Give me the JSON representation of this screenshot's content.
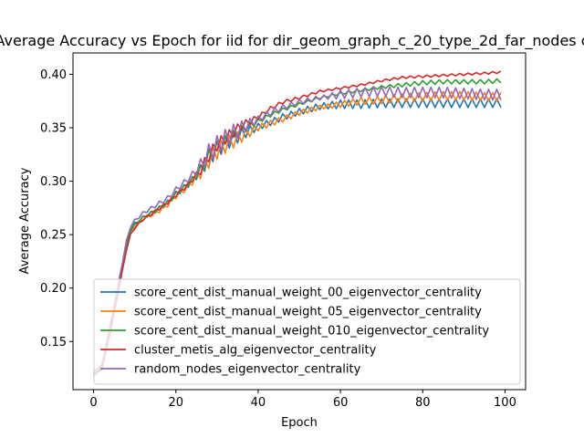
{
  "chart_data": {
    "type": "line",
    "title": "Average Accuracy vs Epoch for iid for dir_geom_graph_c_20_type_2d_far_nodes c",
    "xlabel": "Epoch",
    "ylabel": "Average Accuracy",
    "xlim": [
      -5,
      105
    ],
    "ylim": [
      0.105,
      0.42
    ],
    "xticks": [
      0,
      20,
      40,
      60,
      80,
      100
    ],
    "yticks": [
      0.15,
      0.2,
      0.25,
      0.3,
      0.35,
      0.4
    ],
    "grid": false,
    "legend_position": "lower-right",
    "series": [
      {
        "name": "score_cent_dist_manual_weight_00_eigenvector_centrality",
        "color": "#1f77b4",
        "anchors": [
          [
            0,
            0.12
          ],
          [
            2,
            0.125
          ],
          [
            4,
            0.16
          ],
          [
            6,
            0.2
          ],
          [
            8,
            0.24
          ],
          [
            9,
            0.255
          ],
          [
            10,
            0.26
          ],
          [
            12,
            0.266
          ],
          [
            15,
            0.272
          ],
          [
            18,
            0.28
          ],
          [
            20,
            0.288
          ],
          [
            23,
            0.297
          ],
          [
            26,
            0.31
          ],
          [
            28,
            0.322
          ],
          [
            30,
            0.33
          ],
          [
            33,
            0.338
          ],
          [
            36,
            0.344
          ],
          [
            40,
            0.351
          ],
          [
            43,
            0.355
          ],
          [
            46,
            0.36
          ],
          [
            50,
            0.365
          ],
          [
            55,
            0.37
          ],
          [
            60,
            0.372
          ],
          [
            65,
            0.372
          ],
          [
            70,
            0.373
          ],
          [
            75,
            0.373
          ],
          [
            80,
            0.373
          ],
          [
            85,
            0.373
          ],
          [
            90,
            0.373
          ],
          [
            95,
            0.373
          ],
          [
            99,
            0.373
          ]
        ],
        "zigzag": [
          [
            0,
            0
          ],
          [
            24,
            0.003
          ],
          [
            28,
            0.008
          ],
          [
            34,
            0.007
          ],
          [
            40,
            0.003
          ],
          [
            56,
            0.003
          ],
          [
            60,
            0.004
          ],
          [
            80,
            0.004
          ],
          [
            99,
            0.004
          ]
        ]
      },
      {
        "name": "score_cent_dist_manual_weight_05_eigenvector_centrality",
        "color": "#ff7f0e",
        "anchors": [
          [
            0,
            0.118
          ],
          [
            2,
            0.125
          ],
          [
            4,
            0.16
          ],
          [
            6,
            0.198
          ],
          [
            8,
            0.238
          ],
          [
            9,
            0.252
          ],
          [
            10,
            0.258
          ],
          [
            12,
            0.265
          ],
          [
            15,
            0.27
          ],
          [
            18,
            0.278
          ],
          [
            20,
            0.286
          ],
          [
            23,
            0.295
          ],
          [
            26,
            0.308
          ],
          [
            28,
            0.32
          ],
          [
            30,
            0.328
          ],
          [
            33,
            0.336
          ],
          [
            36,
            0.342
          ],
          [
            40,
            0.35
          ],
          [
            43,
            0.354
          ],
          [
            46,
            0.358
          ],
          [
            50,
            0.364
          ],
          [
            55,
            0.369
          ],
          [
            60,
            0.372
          ],
          [
            65,
            0.375
          ],
          [
            70,
            0.376
          ],
          [
            75,
            0.378
          ],
          [
            80,
            0.379
          ],
          [
            85,
            0.38
          ],
          [
            90,
            0.38
          ],
          [
            95,
            0.379
          ],
          [
            99,
            0.379
          ]
        ],
        "zigzag": [
          [
            0,
            0
          ],
          [
            24,
            0.003
          ],
          [
            28,
            0.008
          ],
          [
            34,
            0.007
          ],
          [
            40,
            0.003
          ],
          [
            56,
            0.002
          ],
          [
            60,
            0.003
          ],
          [
            80,
            0.004
          ],
          [
            99,
            0.004
          ]
        ]
      },
      {
        "name": "score_cent_dist_manual_weight_010_eigenvector_centrality",
        "color": "#2ca02c",
        "anchors": [
          [
            0,
            0.12
          ],
          [
            2,
            0.126
          ],
          [
            4,
            0.162
          ],
          [
            6,
            0.2
          ],
          [
            8,
            0.24
          ],
          [
            9,
            0.254
          ],
          [
            10,
            0.259
          ],
          [
            12,
            0.266
          ],
          [
            15,
            0.273
          ],
          [
            18,
            0.28
          ],
          [
            20,
            0.288
          ],
          [
            23,
            0.298
          ],
          [
            26,
            0.31
          ],
          [
            28,
            0.323
          ],
          [
            30,
            0.332
          ],
          [
            33,
            0.34
          ],
          [
            36,
            0.348
          ],
          [
            40,
            0.356
          ],
          [
            43,
            0.362
          ],
          [
            46,
            0.367
          ],
          [
            50,
            0.372
          ],
          [
            55,
            0.378
          ],
          [
            60,
            0.382
          ],
          [
            65,
            0.385
          ],
          [
            70,
            0.388
          ],
          [
            75,
            0.39
          ],
          [
            80,
            0.392
          ],
          [
            85,
            0.393
          ],
          [
            90,
            0.393
          ],
          [
            95,
            0.393
          ],
          [
            99,
            0.394
          ]
        ],
        "zigzag": [
          [
            0,
            0
          ],
          [
            24,
            0.002
          ],
          [
            28,
            0.006
          ],
          [
            34,
            0.005
          ],
          [
            40,
            0.002
          ],
          [
            56,
            0.001
          ],
          [
            60,
            0.001
          ],
          [
            80,
            0.002
          ],
          [
            99,
            0.002
          ]
        ]
      },
      {
        "name": "cluster_metis_alg_eigenvector_centrality",
        "color": "#d62728",
        "anchors": [
          [
            0,
            0.118
          ],
          [
            2,
            0.124
          ],
          [
            4,
            0.158
          ],
          [
            6,
            0.196
          ],
          [
            8,
            0.236
          ],
          [
            9,
            0.25
          ],
          [
            10,
            0.256
          ],
          [
            12,
            0.264
          ],
          [
            15,
            0.272
          ],
          [
            18,
            0.28
          ],
          [
            20,
            0.287
          ],
          [
            23,
            0.297
          ],
          [
            26,
            0.31
          ],
          [
            28,
            0.324
          ],
          [
            30,
            0.334
          ],
          [
            33,
            0.343
          ],
          [
            36,
            0.352
          ],
          [
            40,
            0.36
          ],
          [
            43,
            0.368
          ],
          [
            46,
            0.374
          ],
          [
            50,
            0.378
          ],
          [
            55,
            0.384
          ],
          [
            60,
            0.387
          ],
          [
            65,
            0.39
          ],
          [
            70,
            0.394
          ],
          [
            75,
            0.397
          ],
          [
            80,
            0.398
          ],
          [
            85,
            0.399
          ],
          [
            90,
            0.4
          ],
          [
            95,
            0.401
          ],
          [
            99,
            0.402
          ]
        ],
        "zigzag": [
          [
            0,
            0
          ],
          [
            24,
            0.002
          ],
          [
            28,
            0.006
          ],
          [
            34,
            0.005
          ],
          [
            40,
            0.002
          ],
          [
            56,
            0.001
          ],
          [
            60,
            0.001
          ],
          [
            80,
            0.001
          ],
          [
            99,
            0.001
          ]
        ]
      },
      {
        "name": "random_nodes_eigenvector_centrality",
        "color": "#9467bd",
        "anchors": [
          [
            0,
            0.122
          ],
          [
            2,
            0.128
          ],
          [
            4,
            0.165
          ],
          [
            6,
            0.204
          ],
          [
            8,
            0.244
          ],
          [
            9,
            0.258
          ],
          [
            10,
            0.263
          ],
          [
            12,
            0.27
          ],
          [
            15,
            0.277
          ],
          [
            18,
            0.284
          ],
          [
            20,
            0.292
          ],
          [
            23,
            0.302
          ],
          [
            26,
            0.315
          ],
          [
            28,
            0.326
          ],
          [
            30,
            0.334
          ],
          [
            33,
            0.343
          ],
          [
            36,
            0.35
          ],
          [
            40,
            0.358
          ],
          [
            43,
            0.364
          ],
          [
            46,
            0.369
          ],
          [
            50,
            0.374
          ],
          [
            55,
            0.378
          ],
          [
            60,
            0.381
          ],
          [
            65,
            0.383
          ],
          [
            70,
            0.384
          ],
          [
            75,
            0.383
          ],
          [
            80,
            0.383
          ],
          [
            85,
            0.383
          ],
          [
            90,
            0.382
          ],
          [
            95,
            0.381
          ],
          [
            99,
            0.381
          ]
        ],
        "zigzag": [
          [
            0,
            0
          ],
          [
            24,
            0.003
          ],
          [
            28,
            0.009
          ],
          [
            34,
            0.008
          ],
          [
            40,
            0.003
          ],
          [
            56,
            0.002
          ],
          [
            60,
            0.004
          ],
          [
            80,
            0.005
          ],
          [
            99,
            0.005
          ]
        ]
      }
    ]
  }
}
